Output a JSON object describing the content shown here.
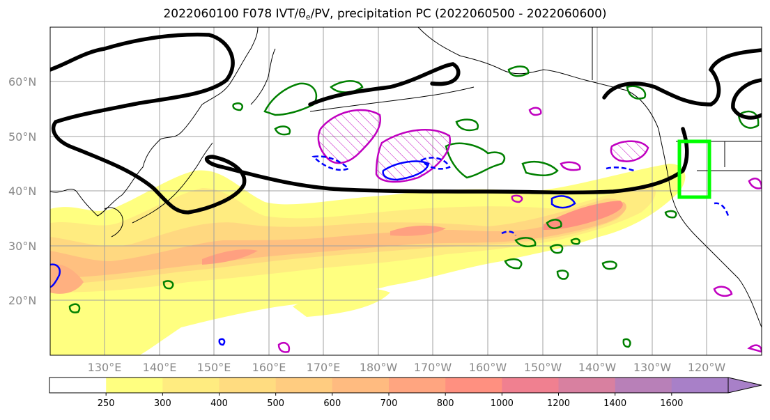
{
  "title": {
    "main": "2022060100 F078 IVT/θ",
    "sub": "e",
    "rest": "/PV, precipitation PC (2022060500 - 2022060600)"
  },
  "map": {
    "lon_range": [
      120,
      250
    ],
    "lat_range": [
      10,
      70
    ],
    "gridlines": true,
    "lat_ticks": [
      {
        "value": 20,
        "label": "20°N"
      },
      {
        "value": 30,
        "label": "30°N"
      },
      {
        "value": 40,
        "label": "40°N"
      },
      {
        "value": 50,
        "label": "50°N"
      },
      {
        "value": 60,
        "label": "60°N"
      }
    ],
    "lon_ticks": [
      {
        "value": 130,
        "label": "130°E"
      },
      {
        "value": 140,
        "label": "140°E"
      },
      {
        "value": 150,
        "label": "150°E"
      },
      {
        "value": 160,
        "label": "160°E"
      },
      {
        "value": 170,
        "label": "170°E"
      },
      {
        "value": 180,
        "label": "180°W"
      },
      {
        "value": 190,
        "label": "170°W"
      },
      {
        "value": 200,
        "label": "160°W"
      },
      {
        "value": 210,
        "label": "150°W"
      },
      {
        "value": 220,
        "label": "140°W"
      },
      {
        "value": 230,
        "label": "130°W"
      },
      {
        "value": 240,
        "label": "120°W"
      }
    ],
    "highlight_box": {
      "lon": [
        235,
        241
      ],
      "lat": [
        39,
        49
      ],
      "color": "#00ff00"
    }
  },
  "colorbar": {
    "labels": [
      "250",
      "300",
      "400",
      "500",
      "600",
      "700",
      "800",
      "1000",
      "1200",
      "1400",
      "1600"
    ],
    "colors": [
      "#ffffff",
      "#ffff80",
      "#ffec80",
      "#ffdc80",
      "#ffcc80",
      "#ffbb80",
      "#ffa580",
      "#ff9080",
      "#f08090",
      "#d880a0",
      "#b880b8",
      "#a880c8"
    ],
    "extend": "max"
  },
  "colors": {
    "theta_contour": "#000000",
    "pv_green": "#008000",
    "pv_blue": "#0000ff",
    "pv_magenta": "#c000c0",
    "coast": "#000000",
    "grid": "#a0a0a0"
  }
}
